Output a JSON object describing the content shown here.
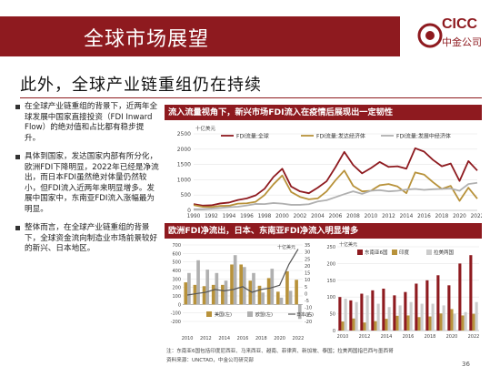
{
  "header": {
    "title": "全球市场展望",
    "logo_brand": "CICC",
    "logo_sub": "中金公司"
  },
  "subtitle": "此外，全球产业链重组仍在持续",
  "bullets": [
    "在全球产业链重组的背景下，近两年全球发展中国家直接投资（FDI Inward Flow）的绝对值和占比都有稳步提升。",
    "具体到国家，发达国家内部有所分化，欧洲FDI下降明显，2022年已经是净流出，而日本FDI虽然绝对体量仍然较小，但FDI流入近两年来明显增多。发展中国家中，东南亚FDI流入涨幅最为明显。",
    "整体而言，在全球产业链重组的背景下，全球资金流向制造业市场前景较好的新兴、日本地区。"
  ],
  "colors": {
    "accent": "#8e1a1f",
    "brown": "#8e1a1f",
    "gold": "#b8923a",
    "gray": "#b0b0b0"
  },
  "chart_data": [
    {
      "type": "line",
      "title": "流入流量视角下，新兴市场FDI流入在疫情后展现出一定韧性",
      "unit_label": "十亿美元",
      "x": [
        1990,
        1991,
        1992,
        1993,
        1994,
        1995,
        1996,
        1997,
        1998,
        1999,
        2000,
        2001,
        2002,
        2003,
        2004,
        2005,
        2006,
        2007,
        2008,
        2009,
        2010,
        2011,
        2012,
        2013,
        2014,
        2015,
        2016,
        2017,
        2018,
        2019,
        2020,
        2021,
        2022
      ],
      "x_ticks": [
        "1990",
        "1992",
        "1994",
        "1996",
        "1998",
        "2000",
        "2002",
        "2004",
        "2006",
        "2008",
        "2010",
        "2012",
        "2014",
        "2016",
        "2018",
        "2020",
        "2022"
      ],
      "ylim": [
        0,
        2500
      ],
      "y_ticks": [
        "0",
        "500",
        "1000",
        "1500",
        "2000",
        "2500"
      ],
      "legend_position": "top",
      "series": [
        {
          "name": "FDI流量:全球",
          "color": "#8e1a1f",
          "values": [
            205,
            155,
            165,
            225,
            255,
            340,
            390,
            490,
            705,
            1090,
            1360,
            780,
            620,
            560,
            740,
            950,
            1410,
            1910,
            1480,
            1210,
            1380,
            1580,
            1420,
            1440,
            1360,
            2030,
            1920,
            1650,
            1440,
            1530,
            960,
            1610,
            1300
          ]
        },
        {
          "name": "FDI流量:发达经济体",
          "color": "#b8923a",
          "values": [
            170,
            115,
            110,
            145,
            150,
            220,
            230,
            280,
            500,
            850,
            1140,
            600,
            440,
            360,
            390,
            620,
            980,
            1300,
            800,
            620,
            640,
            820,
            860,
            780,
            560,
            1240,
            1170,
            920,
            700,
            800,
            310,
            740,
            380
          ]
        },
        {
          "name": "FDI流量:发展中经济体",
          "color": "#b0b0b0",
          "values": [
            35,
            40,
            55,
            80,
            105,
            120,
            160,
            210,
            205,
            240,
            220,
            180,
            180,
            200,
            290,
            330,
            430,
            530,
            620,
            540,
            640,
            660,
            620,
            640,
            680,
            700,
            670,
            690,
            700,
            710,
            640,
            860,
            900
          ]
        }
      ]
    },
    {
      "type": "bar",
      "title": "欧洲FDI净流出，日本、东南亚FDI净流入明显增多",
      "unit_label": "十亿美元",
      "unit_label_right": "十亿美元",
      "x_ticks": [
        "2010",
        "2012",
        "2014",
        "2016",
        "2018",
        "2020",
        "2022"
      ],
      "ylim": [
        -200,
        700
      ],
      "y_ticks": [
        "-200",
        "-100",
        "0",
        "100",
        "200",
        "300",
        "400",
        "500",
        "600",
        "700"
      ],
      "y2lim": [
        -20,
        35
      ],
      "y2_ticks": [
        "-20",
        "-15",
        "-10",
        "-5",
        "0",
        "5",
        "10",
        "15",
        "20",
        "25",
        "30",
        "35"
      ],
      "categories": [
        "2010",
        "2011",
        "2012",
        "2013",
        "2014",
        "2015",
        "2016",
        "2017",
        "2018",
        "2019",
        "2020",
        "2021",
        "2022"
      ],
      "series": [
        {
          "name": "美国(左)",
          "color": "#b8923a",
          "kind": "bar",
          "values": [
            260,
            230,
            215,
            230,
            230,
            470,
            470,
            280,
            220,
            310,
            150,
            390,
            290
          ]
        },
        {
          "name": "欧盟(左)",
          "color": "#b0b0b0",
          "kind": "bar",
          "values": [
            370,
            520,
            410,
            370,
            280,
            580,
            440,
            370,
            140,
            420,
            80,
            160,
            -170
          ]
        },
        {
          "name": "日本(右)",
          "color": "#555555",
          "kind": "line",
          "values": [
            -1,
            0,
            1,
            3,
            2,
            3,
            5,
            1,
            3,
            4,
            6,
            21,
            32
          ]
        }
      ]
    },
    {
      "type": "bar",
      "unit_label": "十亿美元",
      "x_ticks": [
        "2010",
        "2012",
        "2014",
        "2016",
        "2018",
        "2020",
        "2022"
      ],
      "ylim": [
        0,
        250
      ],
      "y_ticks": [
        "0",
        "50",
        "100",
        "150",
        "200",
        "250"
      ],
      "categories": [
        "2010",
        "2011",
        "2012",
        "2013",
        "2014",
        "2015",
        "2016",
        "2017",
        "2018",
        "2019",
        "2020",
        "2021",
        "2022"
      ],
      "series": [
        {
          "name": "东南亚6国",
          "color": "#8e1a1f",
          "values": [
            100,
            90,
            110,
            120,
            125,
            105,
            115,
            140,
            150,
            165,
            135,
            200,
            225
          ]
        },
        {
          "name": "印度",
          "color": "#b8923a",
          "values": [
            27,
            36,
            24,
            28,
            35,
            44,
            45,
            40,
            42,
            51,
            64,
            45,
            50
          ]
        },
        {
          "name": "拉美两国",
          "color": "#cccccc",
          "values": [
            95,
            85,
            105,
            80,
            70,
            75,
            85,
            80,
            80,
            75,
            50,
            55,
            85
          ]
        }
      ]
    }
  ],
  "footnote": "注：东南亚6国包括印度尼西亚、马来西亚、越南、菲律宾、新加坡、泰国；拉美两国指巴西与墨西哥",
  "source": "资料来源：UNCTAD，中金公司研究部",
  "page_number": "36"
}
